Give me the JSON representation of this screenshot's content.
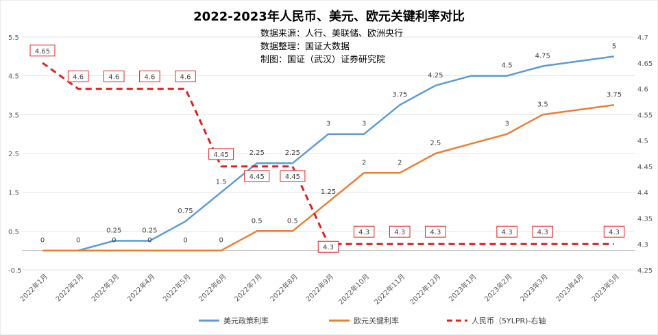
{
  "chart_data": {
    "type": "line",
    "title": "2022-2023年人民币、美元、欧元关键利率对比",
    "subtitle_lines": [
      "数据来源：人行、美联储、欧洲央行",
      "数据整理：国证大数据",
      "制图：国证（武汉）证券研究院"
    ],
    "categories": [
      "2022年1月",
      "2022年2月",
      "2022年3月",
      "2022年4月",
      "2022年5月",
      "2022年6月",
      "2022年7月",
      "2022年8月",
      "2022年9月",
      "2022年10月",
      "2022年11月",
      "2022年12月",
      "2023年1月",
      "2023年2月",
      "2023年3月",
      "2023年4月",
      "2023年5月"
    ],
    "left_axis": {
      "ylim": [
        -0.5,
        5.5
      ],
      "ticks": [
        "-0.5",
        "0.5",
        "1.5",
        "2.5",
        "3.5",
        "4.5",
        "5.5"
      ]
    },
    "right_axis": {
      "ylim": [
        4.25,
        4.7
      ],
      "ticks": [
        "4.25",
        "4.3",
        "4.35",
        "4.4",
        "4.45",
        "4.5",
        "4.55",
        "4.6",
        "4.65",
        "4.7"
      ]
    },
    "series": [
      {
        "name": "美元政策利率",
        "axis": "left",
        "color": "#5b9bd5",
        "style": "solid",
        "values": [
          0,
          0,
          0.25,
          0.25,
          0.75,
          1.5,
          2.25,
          2.25,
          3,
          3,
          3.75,
          4.25,
          4.5,
          4.5,
          4.75,
          4.875,
          5
        ],
        "labels": [
          "0",
          "0",
          "0.25",
          "0.25",
          "0.75",
          "1.5",
          "2.25",
          "2.25",
          "3",
          "3",
          "3.75",
          "4.25",
          "",
          "4.5",
          "4.75",
          "",
          "5"
        ]
      },
      {
        "name": "欧元关键利率",
        "axis": "left",
        "color": "#ed7d31",
        "style": "solid",
        "values": [
          0,
          0,
          0,
          0,
          0,
          0,
          0.5,
          0.5,
          1.25,
          2,
          2,
          2.5,
          2.75,
          3,
          3.5,
          3.625,
          3.75
        ],
        "labels": [
          "",
          "",
          "0",
          "0",
          "0",
          "0",
          "0.5",
          "0.5",
          "1.25",
          "2",
          "2",
          "2.5",
          "",
          "3",
          "3.5",
          "",
          "3.75"
        ]
      },
      {
        "name": "人民币（5YLPR)-右轴",
        "axis": "right",
        "color": "#e02020",
        "style": "dashed",
        "values": [
          4.65,
          4.6,
          4.6,
          4.6,
          4.6,
          4.45,
          4.45,
          4.45,
          4.3,
          4.3,
          4.3,
          4.3,
          4.3,
          4.3,
          4.3,
          4.3,
          4.3
        ],
        "labels": [
          "4.65",
          "4.6",
          "4.6",
          "4.6",
          "4.6",
          "4.45",
          "4.45",
          "4.45",
          "4.3",
          "4.3",
          "4.3",
          "4.3",
          "",
          "4.3",
          "4.3",
          "",
          "4.3"
        ]
      }
    ],
    "legend_position": "bottom-center"
  }
}
